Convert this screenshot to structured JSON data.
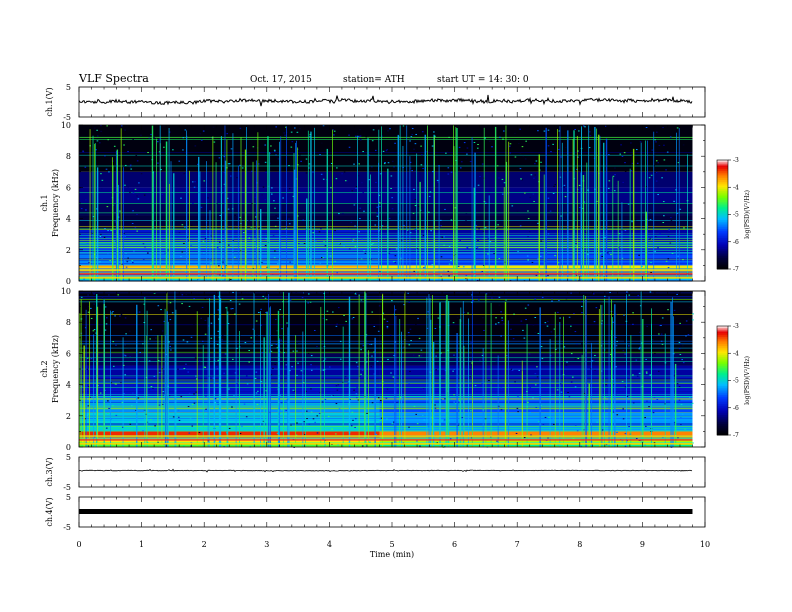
{
  "header": {
    "title": "VLF  Spectra",
    "date": "Oct. 17, 2015",
    "station": "station= ATH",
    "start": "start  UT  =   14: 30: 0"
  },
  "chart_data": [
    {
      "type": "line",
      "panel": "ch1-waveform",
      "ylabel": "ch.1(V)",
      "ylim": [
        -5,
        5
      ],
      "ytick_labels": [
        "5",
        "-5"
      ],
      "xlim": [
        0,
        10
      ],
      "series_color": "#000000",
      "approx_level": 0
    },
    {
      "type": "heatmap",
      "panel": "ch1-spectrogram",
      "ylabel_top": "ch.1",
      "ylabel": "Frequency  (kHz)",
      "ylim": [
        0,
        10
      ],
      "ytick_labels": [
        "0",
        "2",
        "4",
        "6",
        "8",
        "10"
      ],
      "xlim": [
        0,
        9.8
      ],
      "transition_time_min": 4.8,
      "bands": [
        {
          "f0": 0.0,
          "f1": 0.3,
          "v": -5.2
        },
        {
          "f0": 0.3,
          "f1": 0.6,
          "v": -3.4
        },
        {
          "f0": 0.6,
          "f1": 1.0,
          "v": -4.0
        },
        {
          "f0": 1.0,
          "f1": 1.8,
          "v": -5.6
        },
        {
          "f0": 1.8,
          "f1": 2.6,
          "v": -5.9
        },
        {
          "f0": 2.6,
          "f1": 3.3,
          "v": -6.2
        },
        {
          "f0": 3.3,
          "f1": 4.2,
          "v": -6.6
        },
        {
          "f0": 4.2,
          "f1": 5.0,
          "v": -6.5
        },
        {
          "f0": 5.0,
          "f1": 6.0,
          "v": -6.3
        },
        {
          "f0": 6.0,
          "f1": 7.0,
          "v": -6.4
        },
        {
          "f0": 7.0,
          "f1": 10.0,
          "v": -6.9
        }
      ],
      "colorbar": {
        "label": "log(PSD)(V²/Hz)",
        "range": [
          -7,
          -3
        ],
        "tick_labels": [
          "-3",
          "-4",
          "-5",
          "-6",
          "-7"
        ]
      }
    },
    {
      "type": "heatmap",
      "panel": "ch2-spectrogram",
      "ylabel_top": "ch.2",
      "ylabel": "Frequency  (kHz)",
      "ylim": [
        0,
        10
      ],
      "ytick_labels": [
        "0",
        "2",
        "4",
        "6",
        "8",
        "10"
      ],
      "xlim": [
        0,
        9.8
      ],
      "transition_time_min": 4.8,
      "bands": [
        {
          "f0": 0.0,
          "f1": 0.3,
          "v": -4.8
        },
        {
          "f0": 0.3,
          "f1": 0.6,
          "v": -4.2
        },
        {
          "f0": 0.6,
          "f1": 1.0,
          "v": -3.6
        },
        {
          "f0": 1.0,
          "f1": 2.2,
          "v": -5.3
        },
        {
          "f0": 2.2,
          "f1": 3.2,
          "v": -5.6
        },
        {
          "f0": 3.2,
          "f1": 4.2,
          "v": -6.0
        },
        {
          "f0": 4.2,
          "f1": 5.2,
          "v": -6.2
        },
        {
          "f0": 5.2,
          "f1": 6.0,
          "v": -6.5
        },
        {
          "f0": 6.0,
          "f1": 10.0,
          "v": -6.9
        }
      ],
      "colorbar": {
        "label": "log(PSD)(V²/Hz)",
        "range": [
          -7,
          -3
        ],
        "tick_labels": [
          "-3",
          "-4",
          "-5",
          "-6",
          "-7"
        ]
      }
    },
    {
      "type": "line",
      "panel": "ch3-waveform",
      "ylabel": "ch.3(V)",
      "ylim": [
        -5,
        5
      ],
      "ytick_labels": [
        "5",
        "-5"
      ],
      "xlim": [
        0,
        10
      ],
      "series_color": "#000000",
      "approx_level": 0
    },
    {
      "type": "line",
      "panel": "ch4-waveform",
      "ylabel": "ch.4(V)",
      "ylim": [
        -5,
        5
      ],
      "ytick_labels": [
        "5",
        "-5"
      ],
      "xlim": [
        0,
        10
      ],
      "series_color": "#000000",
      "approx_level": 0
    }
  ],
  "xaxis": {
    "label": "Time  (min)",
    "ticks": [
      0,
      1,
      2,
      3,
      4,
      5,
      6,
      7,
      8,
      9,
      10
    ],
    "tick_labels": [
      "0",
      "1",
      "2",
      "3",
      "4",
      "5",
      "6",
      "7",
      "8",
      "9",
      "10"
    ]
  }
}
